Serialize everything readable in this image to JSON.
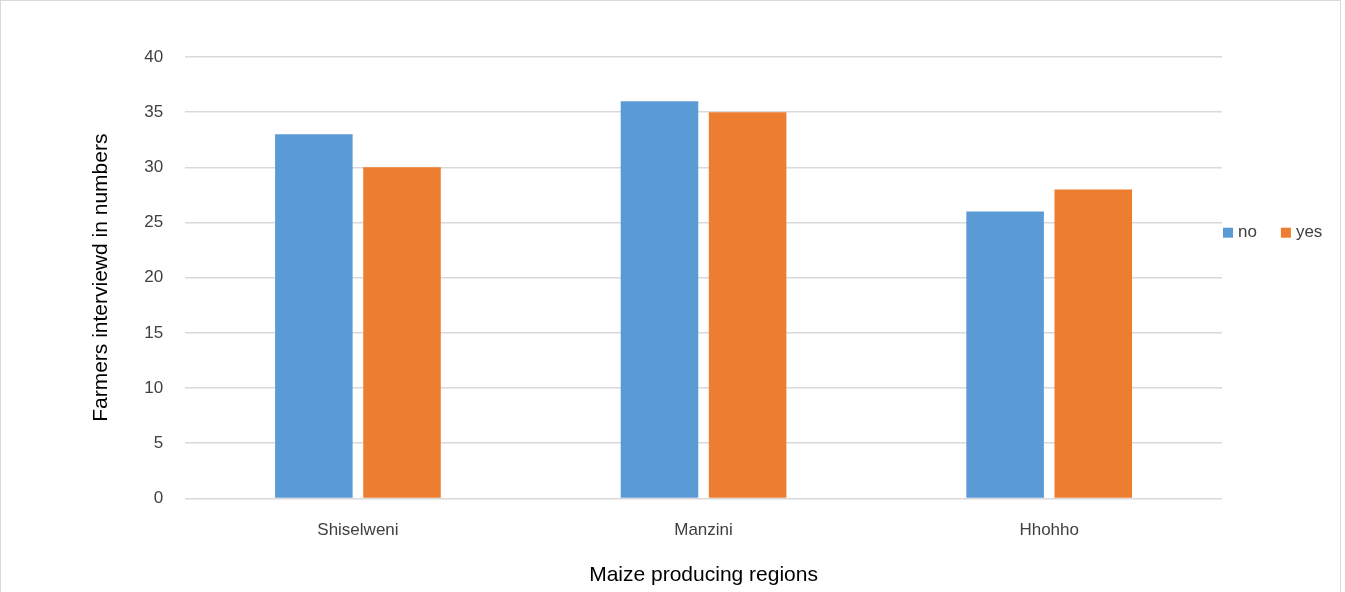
{
  "chart_data": {
    "type": "bar",
    "xlabel": "Maize producing regions",
    "ylabel": "Farmers interviewd in numbers",
    "categories": [
      "Shiselweni",
      "Manzini",
      "Hhohho"
    ],
    "series": [
      {
        "name": "no",
        "color": "#5b9bd5",
        "values": [
          33,
          36,
          26
        ]
      },
      {
        "name": "yes",
        "color": "#ed7d31",
        "values": [
          30,
          35,
          28
        ]
      }
    ],
    "ylim": [
      0,
      40
    ],
    "yticks": [
      0,
      5,
      10,
      15,
      20,
      25,
      30,
      35,
      40
    ],
    "grid": "y",
    "legend": "right"
  }
}
